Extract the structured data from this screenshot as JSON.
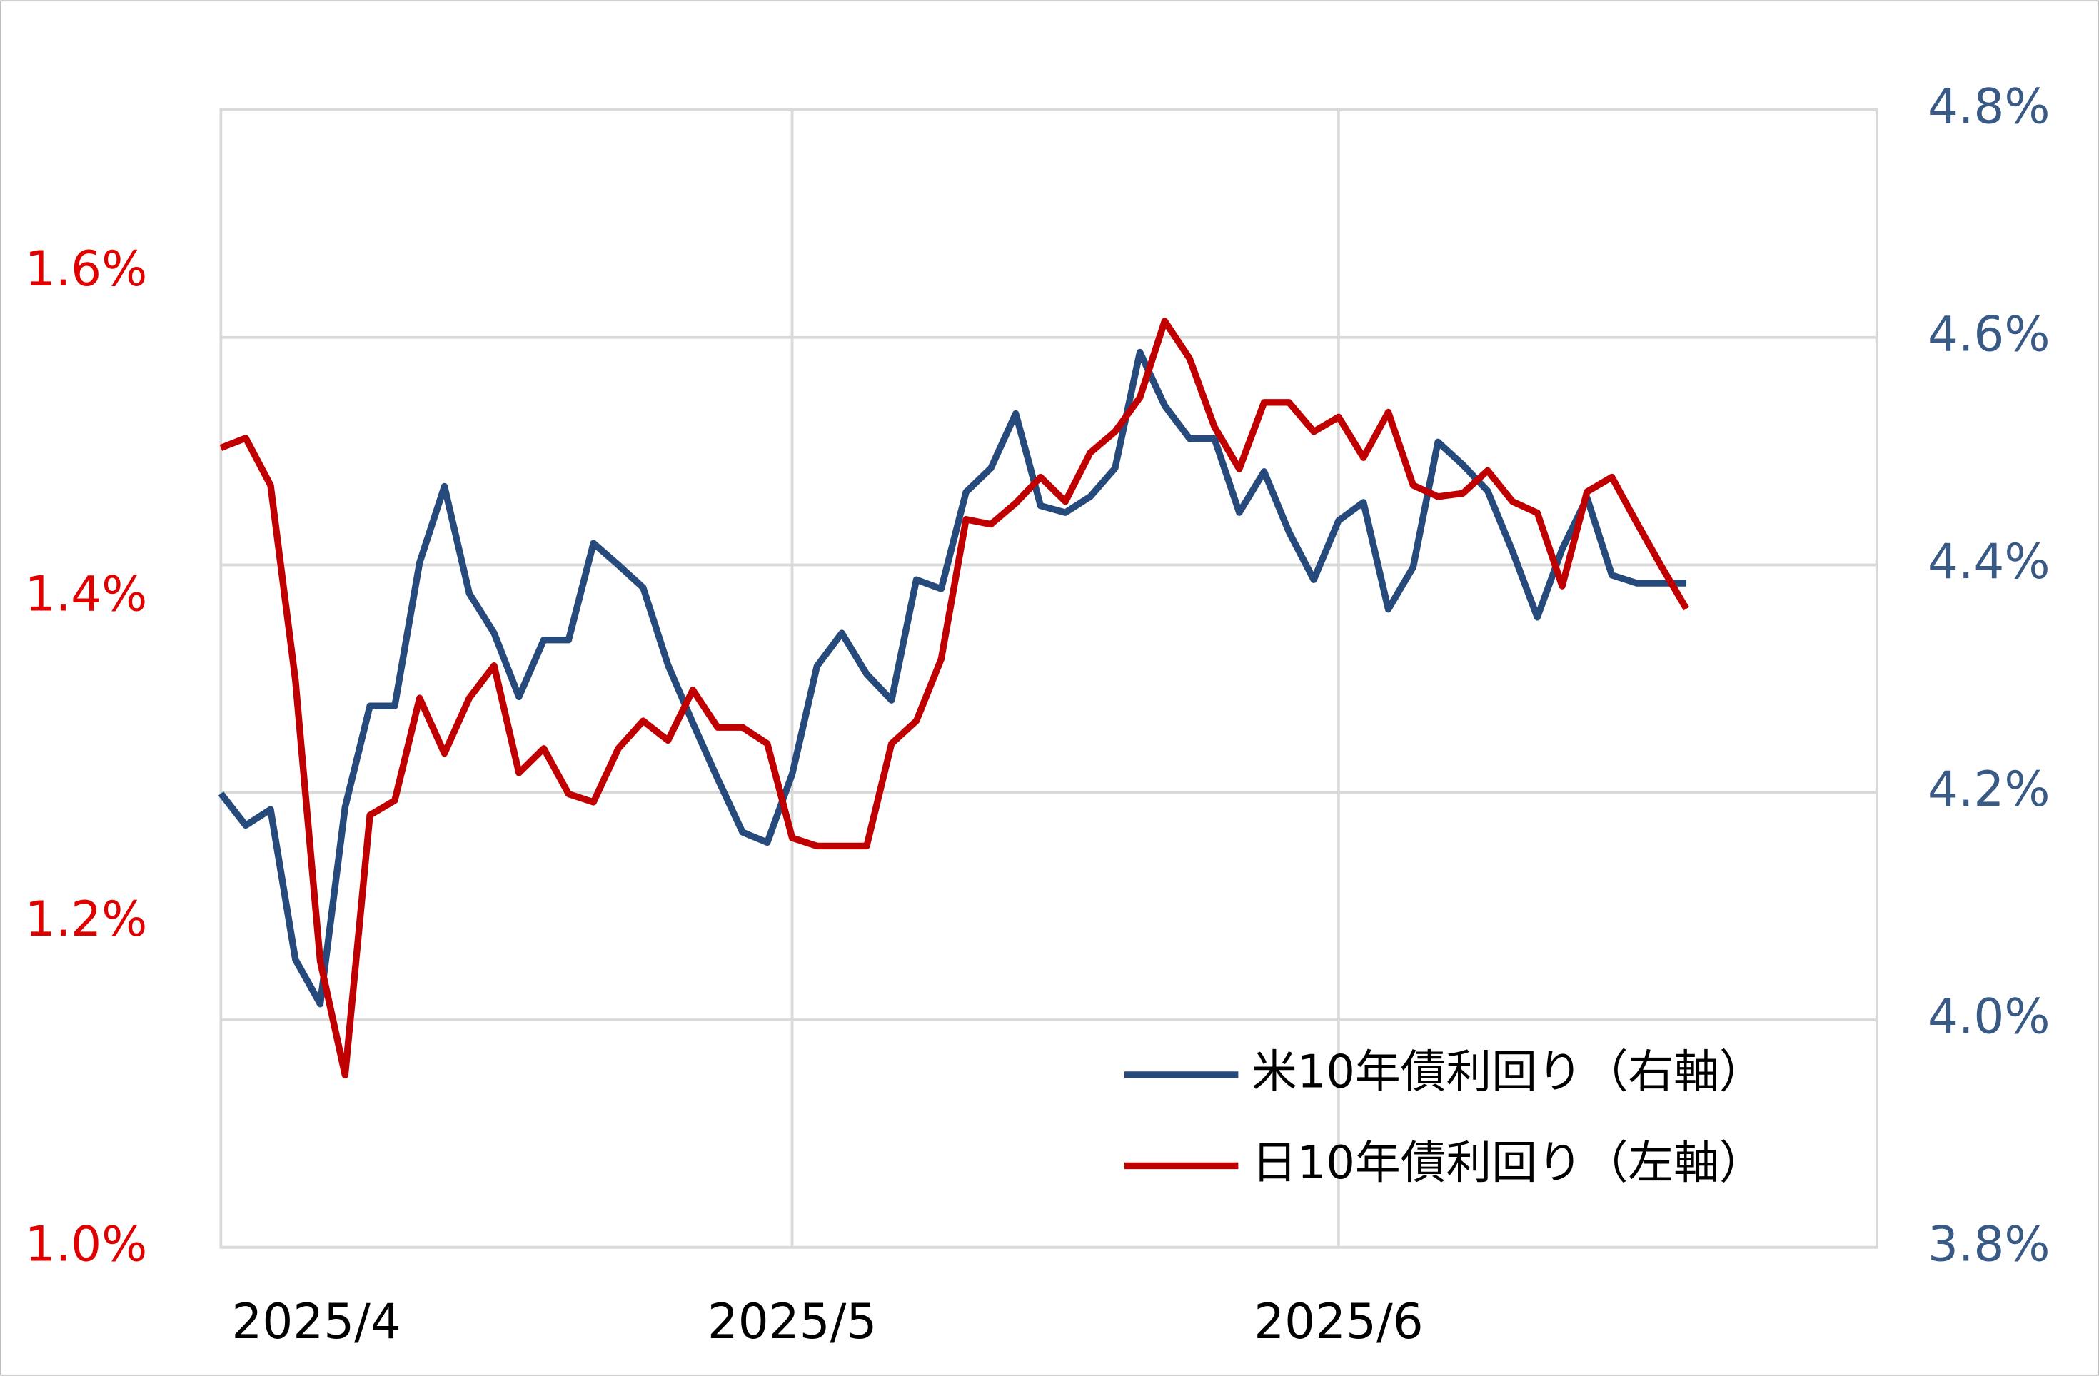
{
  "chart_data": {
    "type": "line",
    "categories": [
      "2025/4",
      null,
      null,
      null,
      null,
      null,
      null,
      null,
      null,
      null,
      null,
      null,
      null,
      null,
      null,
      null,
      null,
      null,
      null,
      null,
      null,
      null,
      null,
      "2025/5",
      null,
      null,
      null,
      null,
      null,
      null,
      null,
      null,
      null,
      null,
      null,
      null,
      null,
      null,
      null,
      null,
      null,
      null,
      null,
      null,
      null,
      "2025/6",
      null,
      null,
      null,
      null,
      null,
      null,
      null,
      null,
      null,
      null,
      null,
      null,
      null,
      null
    ],
    "series": [
      {
        "name": "米10年債利回り（右軸）",
        "color": "#264a7c",
        "axis": "y2",
        "values": [
          4.199,
          4.171,
          4.185,
          4.053,
          4.014,
          4.187,
          4.276,
          4.276,
          4.402,
          4.469,
          4.375,
          4.34,
          4.284,
          4.334,
          4.334,
          4.419,
          4.4,
          4.38,
          4.312,
          4.261,
          4.212,
          4.165,
          4.156,
          4.216,
          4.311,
          4.34,
          4.304,
          4.281,
          4.387,
          4.379,
          4.464,
          4.485,
          4.533,
          4.452,
          4.446,
          4.46,
          4.485,
          4.587,
          4.54,
          4.511,
          4.511,
          4.446,
          4.482,
          4.429,
          4.387,
          4.439,
          4.455,
          4.361,
          4.398,
          4.508,
          4.488,
          4.465,
          4.412,
          4.354,
          4.414,
          4.459,
          4.391,
          4.384,
          4.384,
          4.384
        ]
      },
      {
        "name": "日10年債利回り（左軸）",
        "color": "#c00000",
        "axis": "y",
        "values": [
          1.492,
          1.498,
          1.469,
          1.349,
          1.176,
          1.106,
          1.266,
          1.275,
          1.338,
          1.304,
          1.338,
          1.358,
          1.292,
          1.307,
          1.279,
          1.274,
          1.307,
          1.324,
          1.312,
          1.343,
          1.32,
          1.32,
          1.31,
          1.252,
          1.247,
          1.247,
          1.247,
          1.31,
          1.324,
          1.362,
          1.448,
          1.445,
          1.458,
          1.474,
          1.459,
          1.489,
          1.502,
          1.523,
          1.57,
          1.547,
          1.505,
          1.479,
          1.52,
          1.52,
          1.502,
          1.511,
          1.486,
          1.514,
          1.469,
          1.462,
          1.464,
          1.478,
          1.459,
          1.452,
          1.407,
          1.465,
          1.474,
          1.446,
          1.419,
          1.393
        ]
      }
    ],
    "ylim": [
      1.0,
      1.7
    ],
    "yticks": [
      {
        "value": 1.0,
        "label": "1.0%"
      },
      {
        "value": 1.2,
        "label": "1.2%"
      },
      {
        "value": 1.4,
        "label": "1.4%"
      },
      {
        "value": 1.6,
        "label": "1.6%"
      }
    ],
    "y2lim": [
      3.8,
      4.8
    ],
    "y2ticks": [
      {
        "value": 3.8,
        "label": "3.8%"
      },
      {
        "value": 4.0,
        "label": "4.0%"
      },
      {
        "value": 4.2,
        "label": "4.2%"
      },
      {
        "value": 4.4,
        "label": "4.4%"
      },
      {
        "value": 4.6,
        "label": "4.6%"
      },
      {
        "value": 4.8,
        "label": "4.8%"
      }
    ],
    "grid": true,
    "legend": "lower right"
  }
}
